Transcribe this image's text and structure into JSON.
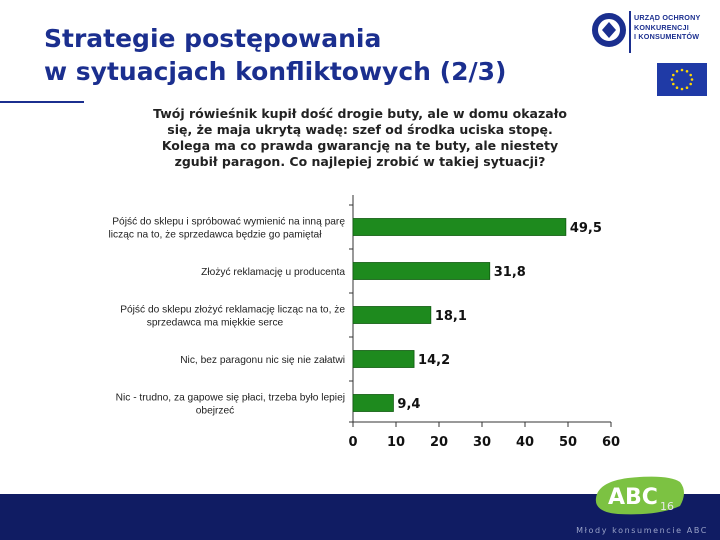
{
  "slide": {
    "title_line1": "Strategie postępowania",
    "title_line2": "w sytuacjach konfliktowych (2/3)",
    "page_number": "16",
    "footer_text": "Młody konsumencie ABC",
    "abc_logo_text": "ABC",
    "colors": {
      "title": "#1b2f8f",
      "bar": "#1e8a1e",
      "footer": "#101c63"
    }
  },
  "logo": {
    "line1": "URZĄD OCHRONY",
    "line2": "KONKURENCJI",
    "line3": "I KONSUMENTÓW"
  },
  "question": {
    "line1": "Twój rówieśnik kupił dość drogie buty, ale w domu okazało",
    "line2": "się, że maja ukrytą wadę: szef od środka uciska stopę.",
    "line3": "Kolega ma co prawda gwarancję na te buty, ale niestety",
    "line4": "zgubił paragon. Co najlepiej zrobić w takiej sytuacji?"
  },
  "chart_data": {
    "type": "bar",
    "orientation": "horizontal",
    "categories": [
      [
        "Pójść do sklepu i spróbować wymienić na inną parę",
        "licząc na to, że sprzedawca będzie go pamiętał"
      ],
      [
        "Złożyć reklamację u producenta"
      ],
      [
        "Pójść do sklepu złożyć reklamację licząc na to, że",
        "sprzedawca ma miękkie serce"
      ],
      [
        "Nic, bez paragonu nic się nie załatwi"
      ],
      [
        "Nic - trudno, za gapowe się płaci, trzeba było lepiej",
        "obejrzeć"
      ]
    ],
    "values": [
      49.5,
      31.8,
      18.1,
      14.2,
      9.4
    ],
    "value_labels": [
      "49,5",
      "31,8",
      "18,1",
      "14,2",
      "9,4"
    ],
    "xlim": [
      0,
      60
    ],
    "xticks": [
      0,
      10,
      20,
      30,
      40,
      50,
      60
    ],
    "xtick_labels": [
      "0",
      "10",
      "20",
      "30",
      "40",
      "50",
      "60"
    ],
    "grid": false
  }
}
